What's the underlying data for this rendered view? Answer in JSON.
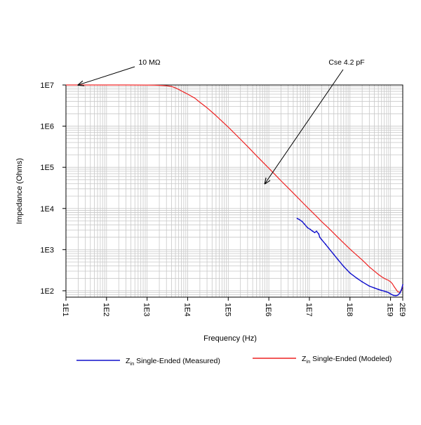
{
  "chart_data": {
    "type": "line",
    "xlabel": "Frequency (Hz)",
    "ylabel": "Impedance (Ohms)",
    "x_scale": "log",
    "y_scale": "log",
    "xlim": [
      10,
      2000000000
    ],
    "ylim": [
      70,
      10000000
    ],
    "x_ticks": [
      {
        "value": 10,
        "label": "1E1"
      },
      {
        "value": 100,
        "label": "1E2"
      },
      {
        "value": 1000,
        "label": "1E3"
      },
      {
        "value": 10000,
        "label": "1E4"
      },
      {
        "value": 100000,
        "label": "1E5"
      },
      {
        "value": 1000000,
        "label": "1E6"
      },
      {
        "value": 10000000,
        "label": "1E7"
      },
      {
        "value": 100000000,
        "label": "1E8"
      },
      {
        "value": 1000000000,
        "label": "1E9"
      },
      {
        "value": 2000000000,
        "label": "2E9"
      }
    ],
    "y_ticks": [
      {
        "value": 100,
        "label": "1E2"
      },
      {
        "value": 1000,
        "label": "1E3"
      },
      {
        "value": 10000,
        "label": "1E4"
      },
      {
        "value": 100000,
        "label": "1E5"
      },
      {
        "value": 1000000,
        "label": "1E6"
      },
      {
        "value": 10000000,
        "label": "1E7"
      }
    ],
    "grid": true,
    "legend_position": "bottom",
    "series": [
      {
        "name": "Single-Ended (Measured)",
        "name_prefix": "Z",
        "name_sub": "in",
        "color": "#1010cc",
        "x": [
          5000000,
          5600000,
          6500000,
          7500000,
          9000000,
          10500000,
          12000000,
          13500000,
          15000000,
          17000000,
          18000000,
          20000000,
          25000000,
          30000000,
          40000000,
          50000000,
          70000000,
          100000000,
          150000000,
          200000000,
          300000000,
          400000000,
          500000000,
          600000000,
          700000000,
          800000000,
          900000000,
          1000000000,
          1100000000,
          1200000000,
          1350000000,
          1500000000,
          1700000000,
          1850000000,
          2000000000
        ],
        "y": [
          5700,
          5400,
          4900,
          4200,
          3400,
          3100,
          2800,
          2600,
          2800,
          2400,
          2000,
          1750,
          1350,
          1080,
          760,
          580,
          390,
          270,
          200,
          165,
          130,
          117,
          108,
          102,
          98,
          94,
          90,
          84,
          80,
          77,
          76,
          78,
          88,
          105,
          140
        ]
      },
      {
        "name": "Single-Ended (Modeled)",
        "name_prefix": "Z",
        "name_sub": "in",
        "color": "#ee2222",
        "x": [
          10,
          30,
          100,
          300,
          1000,
          1500,
          2000,
          2500,
          3000,
          3500,
          4000,
          5000,
          6000,
          7000,
          8000,
          10000,
          15000,
          20000,
          30000,
          50000,
          100000,
          200000,
          300000,
          500000,
          1000000,
          2000000,
          3000000,
          5000000,
          7000000,
          10000000,
          15000000,
          20000000,
          30000000,
          50000000,
          70000000,
          100000000,
          150000000,
          200000000,
          300000000,
          400000000,
          500000000,
          600000000,
          700000000,
          800000000,
          900000000,
          1000000000,
          1100000000,
          1200000000,
          1350000000,
          1500000000,
          1700000000,
          1850000000,
          2000000000
        ],
        "y": [
          10000000,
          10000000,
          10000000,
          9990000,
          9960000,
          9900000,
          9800000,
          9700000,
          9600000,
          9400000,
          9200000,
          8500000,
          7800000,
          7200000,
          6700000,
          6000000,
          4800000,
          3800000,
          2800000,
          1800000,
          950000,
          480000,
          320000,
          190000,
          95000,
          47000,
          31500,
          19000,
          13500,
          9500,
          6400,
          4800,
          3300,
          2000,
          1450,
          1030,
          720,
          560,
          380,
          300,
          250,
          220,
          200,
          188,
          178,
          165,
          150,
          130,
          110,
          95,
          92,
          100,
          135
        ]
      }
    ],
    "annotations": [
      {
        "text": "10 MΩ",
        "target_x": 20,
        "target_y": 10000000
      },
      {
        "text": "Cse 4.2 pF",
        "target_x": 800000,
        "target_y": 40000
      }
    ]
  }
}
